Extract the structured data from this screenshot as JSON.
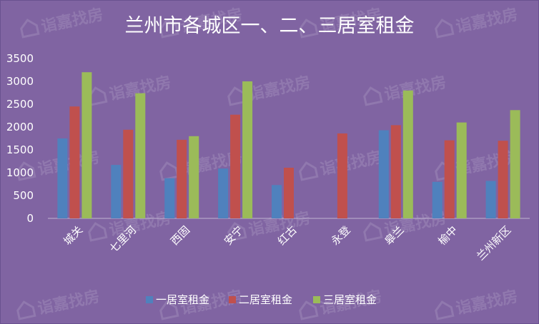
{
  "chart_data": {
    "type": "bar",
    "title": "兰州市各城区一、二、三居室租金",
    "categories": [
      "城关",
      "七里河",
      "西固",
      "安宁",
      "红古",
      "永登",
      "皋兰",
      "榆中",
      "兰州新区"
    ],
    "series": [
      {
        "name": "一居室租金",
        "color": "#4f81bd",
        "values": [
          1750,
          1170,
          880,
          1090,
          730,
          null,
          1930,
          800,
          820
        ]
      },
      {
        "name": "二居室租金",
        "color": "#c0504d",
        "values": [
          2450,
          1940,
          1720,
          2270,
          1110,
          1860,
          2040,
          1710,
          1700
        ]
      },
      {
        "name": "三居室租金",
        "color": "#9bbb59",
        "values": [
          3200,
          2740,
          1800,
          3000,
          null,
          null,
          2800,
          2100,
          2370
        ]
      }
    ],
    "ylim": [
      0,
      3500
    ],
    "yticks": [
      0,
      500,
      1000,
      1500,
      2000,
      2500,
      3000,
      3500
    ],
    "grid": false,
    "legend_position": "bottom"
  },
  "watermark": {
    "text": "诣嘉找房",
    "icon": "house-icon"
  }
}
